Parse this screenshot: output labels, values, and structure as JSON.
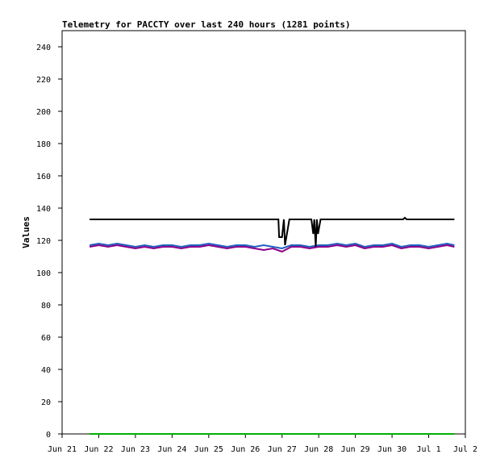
{
  "chart_data": {
    "type": "line",
    "title": "Telemetry for PACCTY over last 240 hours (1281 points)",
    "xlabel": "",
    "ylabel": "Values",
    "ylim": [
      0,
      250
    ],
    "y_ticks": [
      "0",
      "20",
      "40",
      "60",
      "80",
      "100",
      "120",
      "140",
      "160",
      "180",
      "200",
      "220",
      "240"
    ],
    "x_ticks": [
      "Jun 21",
      "Jun 22",
      "Jun 23",
      "Jun 24",
      "Jun 25",
      "Jun 26",
      "Jun 27",
      "Jun 28",
      "Jun 29",
      "Jun 30",
      "Jul 1",
      "Jul 2"
    ],
    "xlim_days": [
      0,
      11
    ],
    "grid": false,
    "series": [
      {
        "color": "#1f5fbf",
        "x": [
          0.75,
          1.0,
          1.25,
          1.5,
          1.75,
          2.0,
          2.25,
          2.5,
          2.75,
          3.0,
          3.25,
          3.5,
          3.75,
          4.0,
          4.25,
          4.5,
          4.75,
          5.0,
          5.25,
          5.5,
          5.75,
          6.0,
          6.25,
          6.5,
          6.75,
          7.0,
          7.25,
          7.5,
          7.75,
          8.0,
          8.25,
          8.5,
          8.75,
          9.0,
          9.25,
          9.5,
          9.75,
          10.0,
          10.25,
          10.5,
          10.7
        ],
        "y": [
          117,
          118,
          117,
          118,
          117,
          116,
          117,
          116,
          117,
          117,
          116,
          117,
          117,
          118,
          117,
          116,
          117,
          117,
          116,
          117,
          116,
          115,
          117,
          117,
          116,
          117,
          117,
          118,
          117,
          118,
          116,
          117,
          117,
          118,
          116,
          117,
          117,
          116,
          117,
          118,
          117
        ]
      },
      {
        "color": "#8b008b",
        "x": [
          0.75,
          1.0,
          1.25,
          1.5,
          1.75,
          2.0,
          2.25,
          2.5,
          2.75,
          3.0,
          3.25,
          3.5,
          3.75,
          4.0,
          4.25,
          4.5,
          4.75,
          5.0,
          5.25,
          5.5,
          5.75,
          6.0,
          6.25,
          6.5,
          6.75,
          7.0,
          7.25,
          7.5,
          7.75,
          8.0,
          8.25,
          8.5,
          8.75,
          9.0,
          9.25,
          9.5,
          9.75,
          10.0,
          10.25,
          10.5,
          10.7
        ],
        "y": [
          116,
          117,
          116,
          117,
          116,
          115,
          116,
          115,
          116,
          116,
          115,
          116,
          116,
          117,
          116,
          115,
          116,
          116,
          115,
          114,
          115,
          113,
          116,
          116,
          115,
          116,
          116,
          117,
          116,
          117,
          115,
          116,
          116,
          117,
          115,
          116,
          116,
          115,
          116,
          117,
          116
        ]
      },
      {
        "color": "#000000",
        "x": [
          0.75,
          5.9,
          5.92,
          6.0,
          6.05,
          6.08,
          6.2,
          6.8,
          6.85,
          6.88,
          6.92,
          6.95,
          6.98,
          7.05,
          8.5,
          9.3,
          9.35,
          9.4,
          10.7
        ],
        "y": [
          133,
          133,
          122,
          122,
          133,
          117,
          133,
          133,
          124,
          133,
          116,
          133,
          124,
          133,
          133,
          133,
          134,
          133,
          133
        ]
      },
      {
        "color": "#00b000",
        "x": [
          0.75,
          10.7
        ],
        "y": [
          0,
          0
        ]
      }
    ]
  }
}
